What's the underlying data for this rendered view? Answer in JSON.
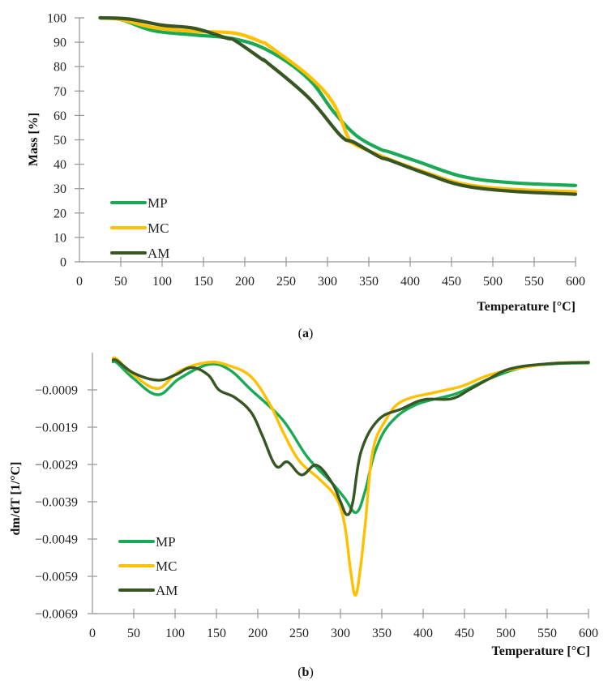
{
  "chart_data": [
    {
      "id": "a",
      "type": "line",
      "caption_prefix": "(",
      "caption_letter": "a",
      "caption_suffix": ")",
      "xlabel": "Temperature [°C]",
      "ylabel": "Mass [%]",
      "xlim": [
        0,
        600
      ],
      "ylim": [
        0,
        100
      ],
      "xticks": [
        0,
        50,
        100,
        150,
        200,
        250,
        300,
        350,
        400,
        450,
        500,
        550,
        600
      ],
      "yticks": [
        0,
        10,
        20,
        30,
        40,
        50,
        60,
        70,
        80,
        90,
        100
      ],
      "ytick_labels": [
        "0",
        "10",
        "20",
        "30",
        "40",
        "50",
        "60",
        "70",
        "80",
        "90",
        "100"
      ],
      "grid": false,
      "legend_position": "bottom-left",
      "series": [
        {
          "name": "MP",
          "color": "#1aaa55",
          "x": [
            25,
            50,
            90,
            139,
            188,
            230,
            277,
            307,
            335,
            363,
            375,
            410,
            463,
            520,
            600
          ],
          "y": [
            100,
            99.3,
            94.7,
            93,
            91.3,
            86.3,
            75,
            61.7,
            51.7,
            46.3,
            45,
            41,
            35,
            32.5,
            31.3
          ]
        },
        {
          "name": "MC",
          "color": "#ffc000",
          "x": [
            25,
            50,
            90,
            139,
            188,
            221,
            230,
            277,
            307,
            324,
            332,
            375,
            420,
            463,
            520,
            600
          ],
          "y": [
            100,
            99.3,
            96,
            94.5,
            93.7,
            90,
            88.3,
            76.3,
            65,
            51.7,
            48.3,
            42,
            36.5,
            32,
            29.8,
            28.7
          ]
        },
        {
          "name": "AM",
          "color": "#375623",
          "x": [
            25,
            60,
            100,
            139,
            178,
            188,
            221,
            227,
            277,
            316,
            332,
            363,
            375,
            420,
            463,
            520,
            600
          ],
          "y": [
            100,
            99.5,
            97,
            95.7,
            91.7,
            90.7,
            83,
            81.7,
            67.3,
            51.7,
            49,
            43,
            41.7,
            36,
            31.3,
            29,
            27.7
          ]
        }
      ]
    },
    {
      "id": "b",
      "type": "line",
      "caption_prefix": "(",
      "caption_letter": "b",
      "caption_suffix": ")",
      "xlabel": "Temperature [°C]",
      "ylabel": "dm/dT [1/°C]",
      "xlim": [
        0,
        600
      ],
      "ylim": [
        -0.0069,
        0.0001
      ],
      "xticks": [
        0,
        50,
        100,
        150,
        200,
        250,
        300,
        350,
        400,
        450,
        500,
        550,
        600
      ],
      "yticks": [
        -0.0069,
        -0.0059,
        -0.0049,
        -0.0039,
        -0.0029,
        -0.0019,
        -0.0009
      ],
      "ytick_labels": [
        "−0.0069",
        "−0.0059",
        "−0.0049",
        "−0.0039",
        "−0.0029",
        "−0.0019",
        "−0.0009"
      ],
      "grid": false,
      "legend_position": "bottom-left",
      "series": [
        {
          "name": "MP",
          "color": "#1aaa55",
          "x": [
            25,
            30,
            50,
            79,
            105,
            140,
            165,
            192,
            230,
            260,
            290,
            305,
            319,
            330,
            342,
            360,
            391,
            440,
            480,
            520,
            560,
            600
          ],
          "y": [
            -0.00015,
            -0.00018,
            -0.0006,
            -0.00103,
            -0.0006,
            -0.00022,
            -0.00035,
            -0.0009,
            -0.0017,
            -0.0027,
            -0.0034,
            -0.0038,
            -0.00419,
            -0.0036,
            -0.00255,
            -0.0018,
            -0.0013,
            -0.001,
            -0.0006,
            -0.0003,
            -0.0002,
            -0.00018
          ]
        },
        {
          "name": "MC",
          "color": "#ffc000",
          "x": [
            25,
            30,
            50,
            79,
            105,
            140,
            165,
            192,
            215,
            230,
            250,
            275,
            295,
            305,
            312,
            318,
            324,
            330,
            339,
            355,
            375,
            418,
            447,
            480,
            520,
            560,
            600
          ],
          "y": [
            -5e-05,
            -8e-05,
            -0.0005,
            -0.00086,
            -0.0004,
            -0.00016,
            -0.00025,
            -0.00055,
            -0.0013,
            -0.002,
            -0.0028,
            -0.0033,
            -0.0038,
            -0.0045,
            -0.0057,
            -0.00641,
            -0.0057,
            -0.0045,
            -0.00255,
            -0.0017,
            -0.0012,
            -0.00095,
            -0.0008,
            -0.0005,
            -0.0003,
            -0.00018,
            -0.00016
          ]
        },
        {
          "name": "AM",
          "color": "#375623",
          "x": [
            25,
            30,
            50,
            79,
            100,
            120,
            140,
            153,
            172,
            192,
            205,
            222,
            236,
            253,
            271,
            290,
            300,
            308,
            315,
            325,
            346,
            375,
            401,
            434,
            457,
            480,
            506,
            550,
            600
          ],
          "y": [
            -0.0001,
            -0.00012,
            -0.00045,
            -0.00064,
            -0.0005,
            -0.0003,
            -0.0005,
            -0.0009,
            -0.0011,
            -0.0015,
            -0.0021,
            -0.00294,
            -0.00283,
            -0.00318,
            -0.00292,
            -0.0034,
            -0.0039,
            -0.00425,
            -0.0039,
            -0.00255,
            -0.0017,
            -0.0014,
            -0.00116,
            -0.00114,
            -0.00088,
            -0.0006,
            -0.00033,
            -0.0002,
            -0.00016
          ]
        }
      ]
    }
  ]
}
